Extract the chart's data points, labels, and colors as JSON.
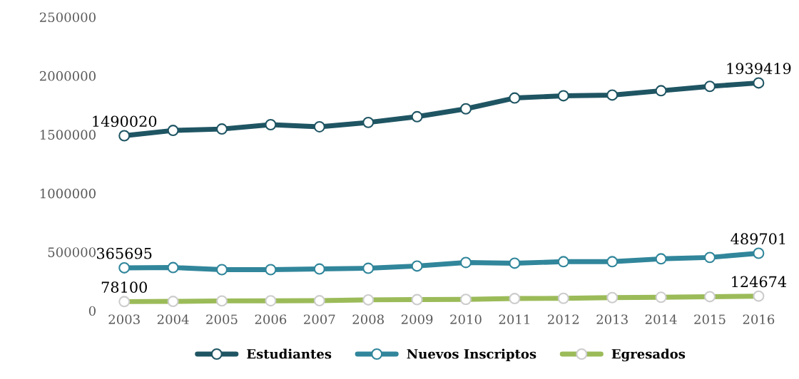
{
  "chart_data": {
    "type": "line",
    "categories": [
      "2003",
      "2004",
      "2005",
      "2006",
      "2007",
      "2008",
      "2009",
      "2010",
      "2011",
      "2012",
      "2013",
      "2014",
      "2015",
      "2016"
    ],
    "series": [
      {
        "name": "Estudiantes",
        "color": "#1f5563",
        "values": [
          1490020,
          1535000,
          1547000,
          1584000,
          1566000,
          1603000,
          1652000,
          1719000,
          1811000,
          1830000,
          1836000,
          1873000,
          1910000,
          1939419
        ],
        "value_labels": [
          "1490020",
          null,
          null,
          null,
          null,
          null,
          null,
          null,
          null,
          null,
          null,
          null,
          null,
          "1939419"
        ]
      },
      {
        "name": "Nuevos Inscriptos",
        "color": "#31869b",
        "values": [
          365695,
          368000,
          350000,
          350000,
          356000,
          362000,
          381000,
          411000,
          405000,
          418000,
          418000,
          442000,
          454000,
          489701
        ],
        "value_labels": [
          "365695",
          null,
          null,
          null,
          null,
          null,
          null,
          null,
          null,
          null,
          null,
          null,
          null,
          "489701"
        ]
      },
      {
        "name": "Egresados",
        "color": "#9bbb59",
        "values": [
          78100,
          80000,
          84000,
          85000,
          86000,
          93000,
          95000,
          97000,
          104000,
          106000,
          112000,
          115000,
          120000,
          124674
        ],
        "value_labels": [
          "78100",
          null,
          null,
          null,
          null,
          null,
          null,
          null,
          null,
          null,
          null,
          null,
          null,
          "124674"
        ]
      }
    ],
    "ylim": [
      0,
      2500000
    ],
    "yticks": [
      0,
      500000,
      1000000,
      1500000,
      2000000,
      2500000
    ],
    "grid": false,
    "legend": "bottom",
    "marker": "circle",
    "line_style": "solid"
  }
}
